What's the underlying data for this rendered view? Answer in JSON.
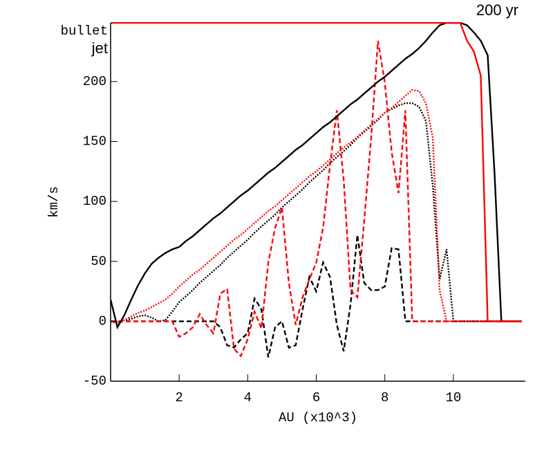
{
  "chart_data": {
    "type": "line",
    "title": "200 yr",
    "xlabel": "AU (x10^3)",
    "ylabel": "km/s",
    "x": [
      0,
      0.2,
      0.4,
      0.6,
      0.8,
      1,
      1.2,
      1.4,
      1.6,
      1.8,
      2,
      2.2,
      2.4,
      2.6,
      2.8,
      3,
      3.2,
      3.4,
      3.6,
      3.8,
      4,
      4.2,
      4.4,
      4.6,
      4.8,
      5,
      5.2,
      5.4,
      5.6,
      5.8,
      6,
      6.2,
      6.4,
      6.6,
      6.8,
      7,
      7.2,
      7.4,
      7.6,
      7.8,
      8,
      8.2,
      8.4,
      8.6,
      8.8,
      9,
      9.2,
      9.4,
      9.6,
      9.8,
      10,
      10.2,
      10.4,
      10.6,
      10.8,
      11,
      11.2,
      11.4,
      11.6,
      11.8,
      12
    ],
    "xlim": [
      0,
      12.1
    ],
    "ylim": [
      -50,
      249
    ],
    "xticks": [
      2,
      4,
      6,
      8,
      10
    ],
    "yticks": [
      -50,
      0,
      50,
      100,
      150,
      200
    ],
    "series": [
      {
        "name": "bullet",
        "color": "#000000",
        "lines": {
          "solid": [
            18,
            -5,
            5,
            18,
            30,
            40,
            48,
            53,
            57,
            60,
            62,
            67,
            71,
            76,
            81,
            86,
            90,
            95,
            100,
            105,
            109,
            114,
            119,
            124,
            128,
            133,
            138,
            143,
            147,
            152,
            157,
            162,
            166,
            171,
            176,
            181,
            185,
            190,
            195,
            200,
            204,
            209,
            214,
            219,
            223,
            228,
            234,
            241,
            247,
            249,
            249,
            249,
            247,
            241,
            234,
            222,
            124,
            0,
            0,
            0,
            0
          ],
          "dashed": [
            0,
            0,
            0,
            0,
            0,
            0,
            0,
            0,
            0,
            0,
            0,
            0,
            0,
            0,
            0,
            0,
            -5,
            -20,
            -22,
            -15,
            -10,
            19,
            10,
            -30,
            -5,
            0,
            -22,
            -20,
            10,
            37,
            25,
            49,
            37,
            -3,
            -25,
            14,
            72,
            32,
            26,
            26,
            29,
            61,
            60,
            0,
            0,
            0,
            0,
            0,
            0,
            0,
            0,
            0,
            0,
            0,
            0,
            0,
            0,
            0,
            0,
            0,
            0
          ],
          "dotted": [
            0,
            -2,
            1,
            2,
            4,
            5,
            3,
            0,
            1,
            8,
            16,
            21,
            26,
            32,
            37,
            42,
            47,
            53,
            58,
            63,
            68,
            74,
            79,
            84,
            89,
            95,
            100,
            105,
            110,
            116,
            121,
            126,
            132,
            137,
            142,
            147,
            153,
            158,
            163,
            168,
            174,
            177,
            180,
            182,
            182,
            179,
            167,
            113,
            35,
            60,
            0,
            0,
            0,
            0,
            0,
            0,
            0,
            0,
            0,
            0,
            0
          ]
        }
      },
      {
        "name": "jet",
        "color": "#ff0000",
        "lines": {
          "solid": [
            249,
            249,
            249,
            249,
            249,
            249,
            249,
            249,
            249,
            249,
            249,
            249,
            249,
            249,
            249,
            249,
            249,
            249,
            249,
            249,
            249,
            249,
            249,
            249,
            249,
            249,
            249,
            249,
            249,
            249,
            249,
            249,
            249,
            249,
            249,
            249,
            249,
            249,
            249,
            249,
            249,
            249,
            249,
            249,
            249,
            249,
            249,
            249,
            249,
            249,
            249,
            249,
            234,
            225,
            205,
            0,
            0,
            0,
            0,
            0,
            0
          ],
          "dashed": [
            0,
            0,
            0,
            0,
            0,
            0,
            0,
            0,
            0,
            0,
            -13,
            -10,
            -5,
            6,
            -3,
            -10,
            23,
            27,
            -23,
            -29,
            -15,
            8,
            -6,
            49,
            78,
            95,
            32,
            -3,
            20,
            35,
            49,
            78,
            130,
            176,
            118,
            26,
            20,
            84,
            153,
            234,
            199,
            141,
            107,
            176,
            0,
            0,
            0,
            0,
            0,
            0,
            0,
            0,
            0,
            0,
            0,
            0,
            0,
            0,
            0,
            0,
            0
          ],
          "dotted": [
            0,
            -2,
            1,
            4,
            7,
            9,
            12,
            15,
            18,
            23,
            29,
            34,
            39,
            43,
            48,
            53,
            58,
            63,
            68,
            72,
            77,
            82,
            87,
            92,
            96,
            101,
            106,
            111,
            116,
            121,
            125,
            130,
            135,
            140,
            145,
            149,
            154,
            159,
            164,
            169,
            174,
            178,
            183,
            188,
            193,
            192,
            182,
            153,
            26,
            0,
            0,
            0,
            0,
            0,
            0,
            0,
            0,
            0,
            0,
            0,
            0
          ]
        }
      }
    ]
  }
}
